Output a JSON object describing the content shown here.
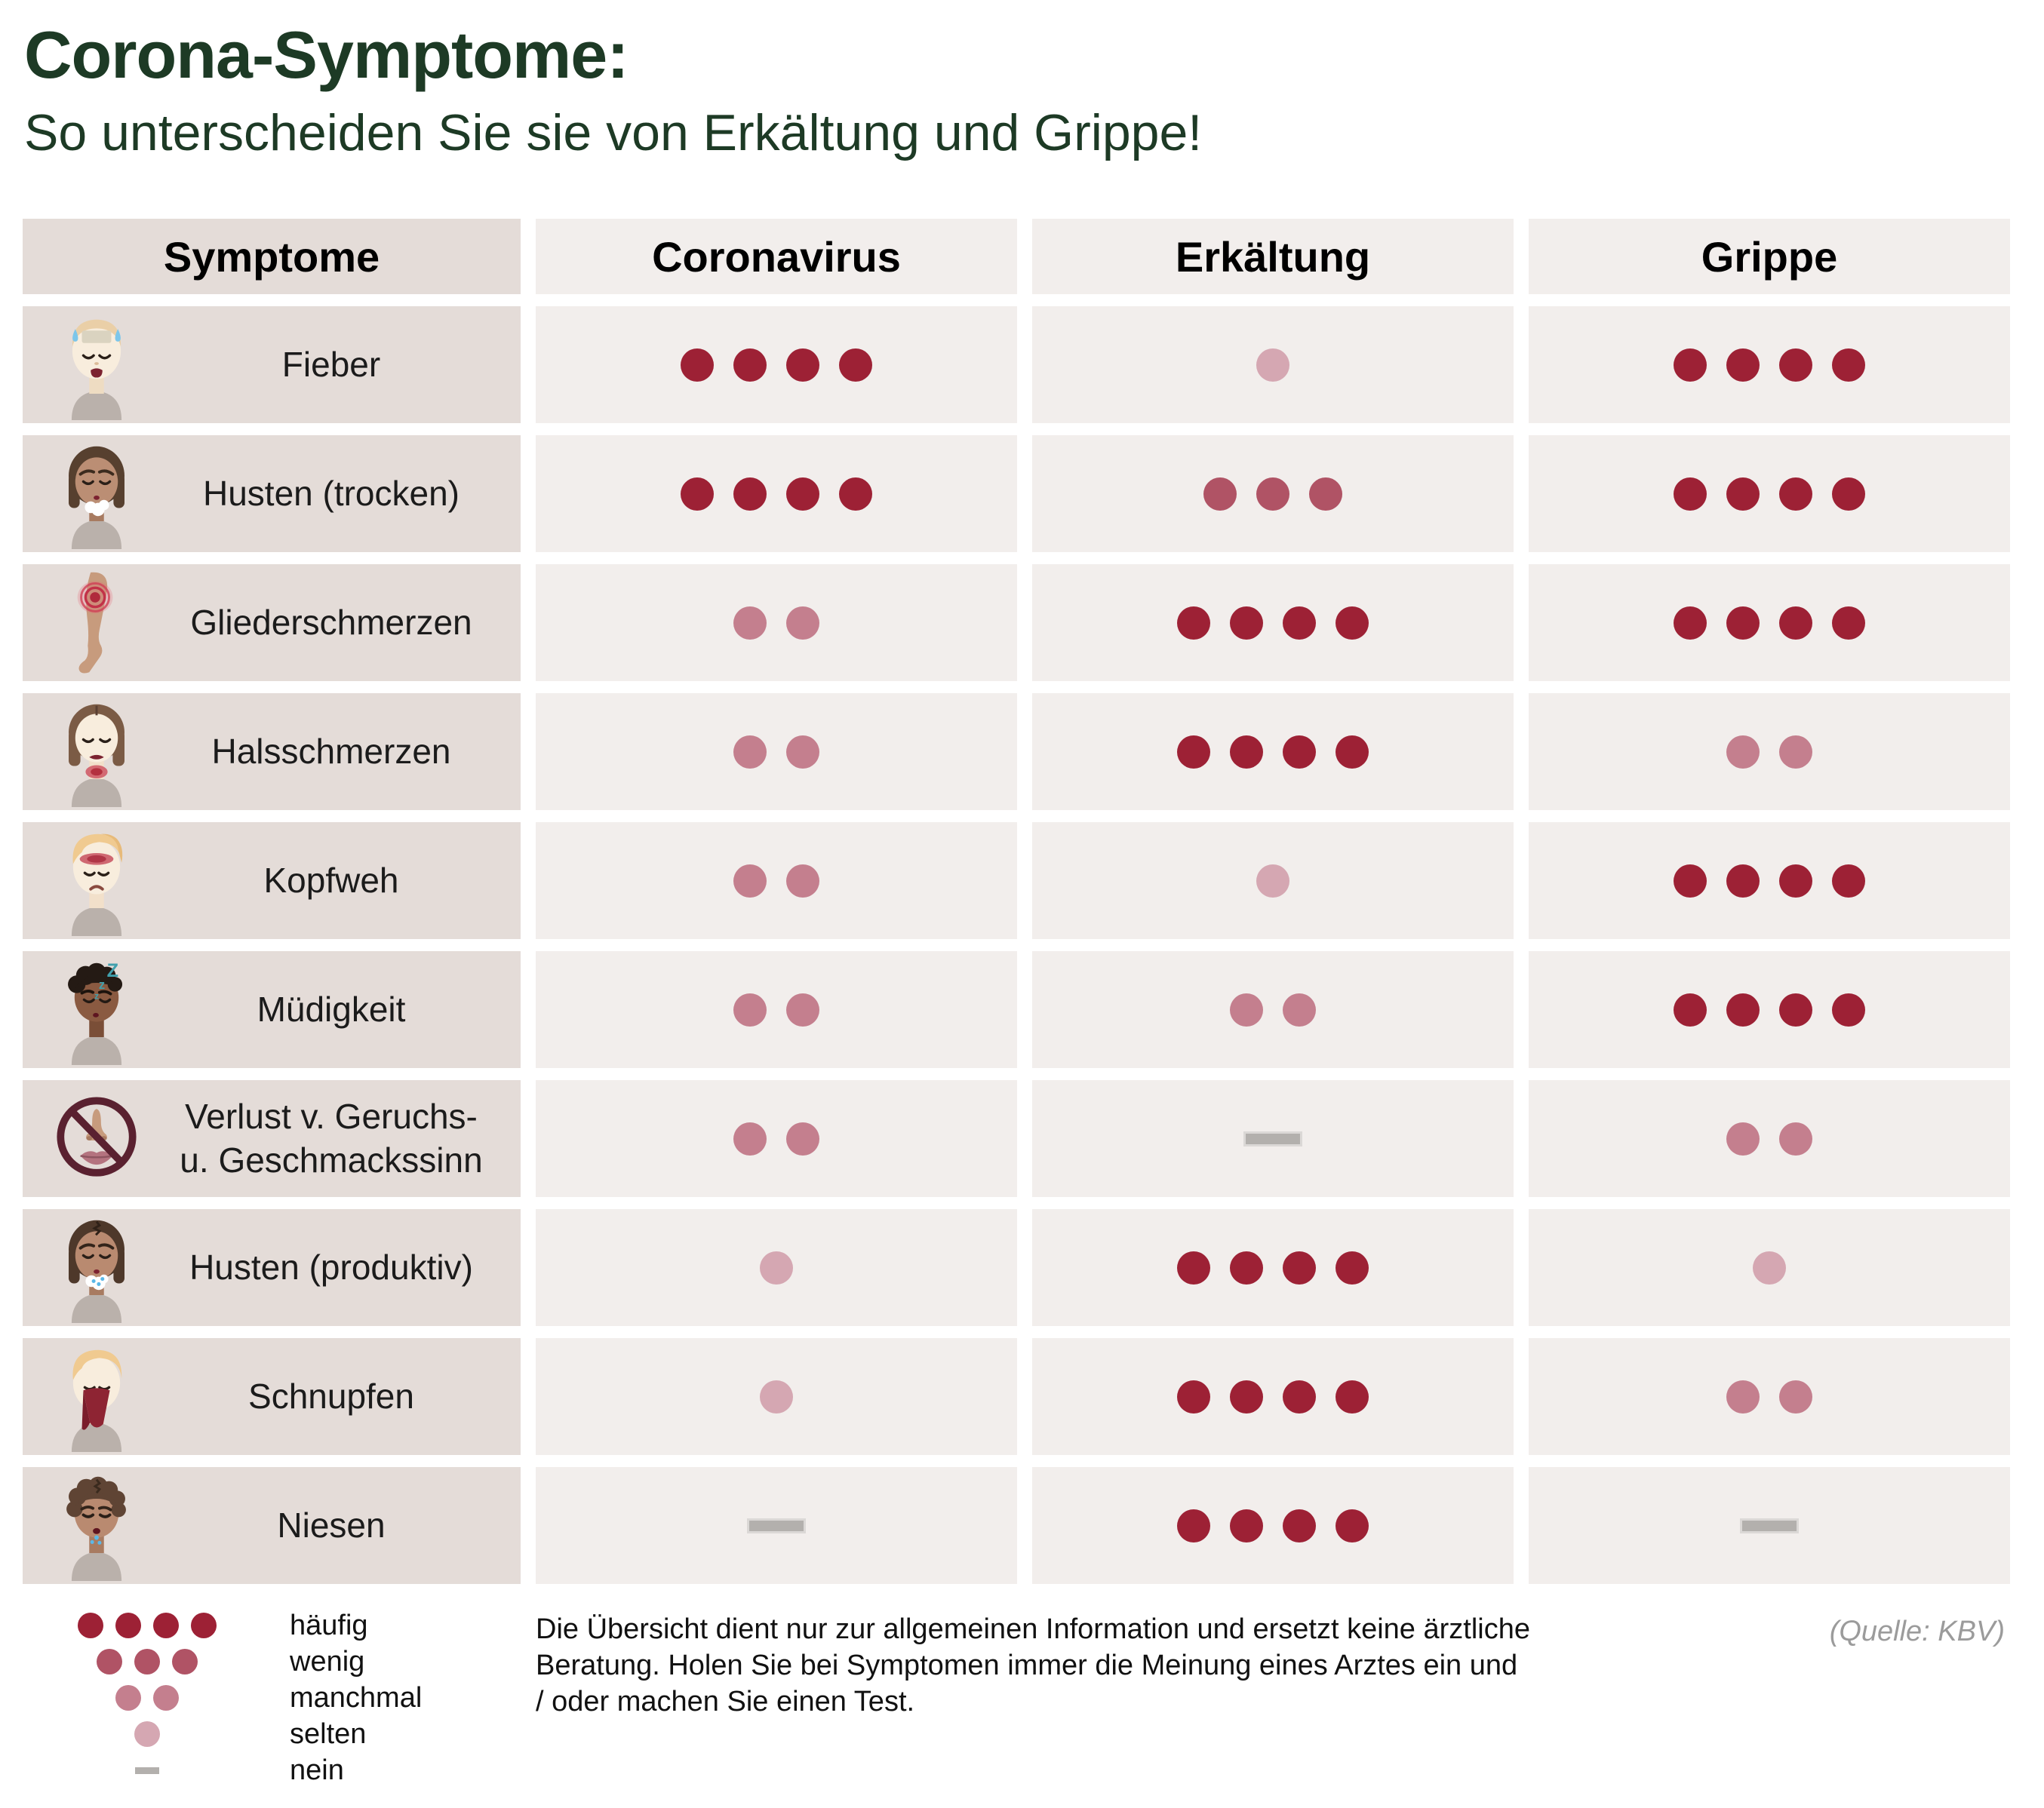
{
  "title": "Corona-Symptome:",
  "subtitle": "So unterscheiden Sie sie von Erkältung und Grippe!",
  "colors": {
    "title_green": "#1d3a25",
    "symptom_cell_bg": "#e4dcd8",
    "data_cell_bg": "#f2eeec",
    "dash_gray": "#b3b0ad"
  },
  "frequency_levels": {
    "häufig": {
      "dots": 4,
      "color": "#9d2135"
    },
    "wenig": {
      "dots": 3,
      "color": "#b05365"
    },
    "manchmal": {
      "dots": 2,
      "color": "#c47f8e"
    },
    "selten": {
      "dots": 1,
      "color": "#d5a7b2"
    },
    "nein": {
      "dots": 0,
      "color": "#b3b0ad"
    }
  },
  "table": {
    "headers": [
      "Symptome",
      "Coronavirus",
      "Erkältung",
      "Grippe"
    ],
    "rows": [
      {
        "symptom": "Fieber",
        "icon": "fever-icon",
        "coronavirus": "häufig",
        "erkaeltung": "selten",
        "grippe": "häufig"
      },
      {
        "symptom": "Husten (trocken)",
        "icon": "dry-cough-icon",
        "coronavirus": "häufig",
        "erkaeltung": "wenig",
        "grippe": "häufig"
      },
      {
        "symptom": "Gliederschmerzen",
        "icon": "limb-pain-icon",
        "coronavirus": "manchmal",
        "erkaeltung": "häufig",
        "grippe": "häufig"
      },
      {
        "symptom": "Halsschmerzen",
        "icon": "sore-throat-icon",
        "coronavirus": "manchmal",
        "erkaeltung": "häufig",
        "grippe": "manchmal"
      },
      {
        "symptom": "Kopfweh",
        "icon": "headache-icon",
        "coronavirus": "manchmal",
        "erkaeltung": "selten",
        "grippe": "häufig"
      },
      {
        "symptom": "Müdigkeit",
        "icon": "fatigue-icon",
        "coronavirus": "manchmal",
        "erkaeltung": "manchmal",
        "grippe": "häufig"
      },
      {
        "symptom": "Verlust v. Geruchs-\nu. Geschmackssinn",
        "icon": "loss-of-smell-icon",
        "coronavirus": "manchmal",
        "erkaeltung": "nein",
        "grippe": "manchmal"
      },
      {
        "symptom": "Husten (produktiv)",
        "icon": "productive-cough-icon",
        "coronavirus": "selten",
        "erkaeltung": "häufig",
        "grippe": "selten"
      },
      {
        "symptom": "Schnupfen",
        "icon": "runny-nose-icon",
        "coronavirus": "selten",
        "erkaeltung": "häufig",
        "grippe": "manchmal"
      },
      {
        "symptom": "Niesen",
        "icon": "sneezing-icon",
        "coronavirus": "nein",
        "erkaeltung": "häufig",
        "grippe": "nein"
      }
    ]
  },
  "legend": {
    "items": [
      {
        "label": "häufig",
        "level": "häufig"
      },
      {
        "label": "wenig",
        "level": "wenig"
      },
      {
        "label": "manchmal",
        "level": "manchmal"
      },
      {
        "label": "selten",
        "level": "selten"
      },
      {
        "label": "nein",
        "level": "nein"
      }
    ]
  },
  "disclaimer": "Die Übersicht dient nur zur allgemeinen Information und ersetzt keine ärztliche Beratung. Holen Sie bei Symptomen immer die Meinung eines Arztes ein und / oder machen Sie einen Test.",
  "source": "(Quelle: KBV)",
  "chart_data": {
    "type": "table",
    "title": "Corona-Symptome: So unterscheiden Sie sie von Erkältung und Grippe!",
    "columns": [
      "Coronavirus",
      "Erkältung",
      "Grippe"
    ],
    "scale_order": [
      "häufig",
      "wenig",
      "manchmal",
      "selten",
      "nein"
    ],
    "rows": [
      {
        "symptom": "Fieber",
        "values": [
          "häufig",
          "selten",
          "häufig"
        ]
      },
      {
        "symptom": "Husten (trocken)",
        "values": [
          "häufig",
          "wenig",
          "häufig"
        ]
      },
      {
        "symptom": "Gliederschmerzen",
        "values": [
          "manchmal",
          "häufig",
          "häufig"
        ]
      },
      {
        "symptom": "Halsschmerzen",
        "values": [
          "manchmal",
          "häufig",
          "manchmal"
        ]
      },
      {
        "symptom": "Kopfweh",
        "values": [
          "manchmal",
          "selten",
          "häufig"
        ]
      },
      {
        "symptom": "Müdigkeit",
        "values": [
          "manchmal",
          "manchmal",
          "häufig"
        ]
      },
      {
        "symptom": "Verlust v. Geruchs- u. Geschmackssinn",
        "values": [
          "manchmal",
          "nein",
          "manchmal"
        ]
      },
      {
        "symptom": "Husten (produktiv)",
        "values": [
          "selten",
          "häufig",
          "selten"
        ]
      },
      {
        "symptom": "Schnupfen",
        "values": [
          "selten",
          "häufig",
          "manchmal"
        ]
      },
      {
        "symptom": "Niesen",
        "values": [
          "nein",
          "häufig",
          "nein"
        ]
      }
    ],
    "legend_position": "bottom-left",
    "source": "(Quelle: KBV)"
  }
}
